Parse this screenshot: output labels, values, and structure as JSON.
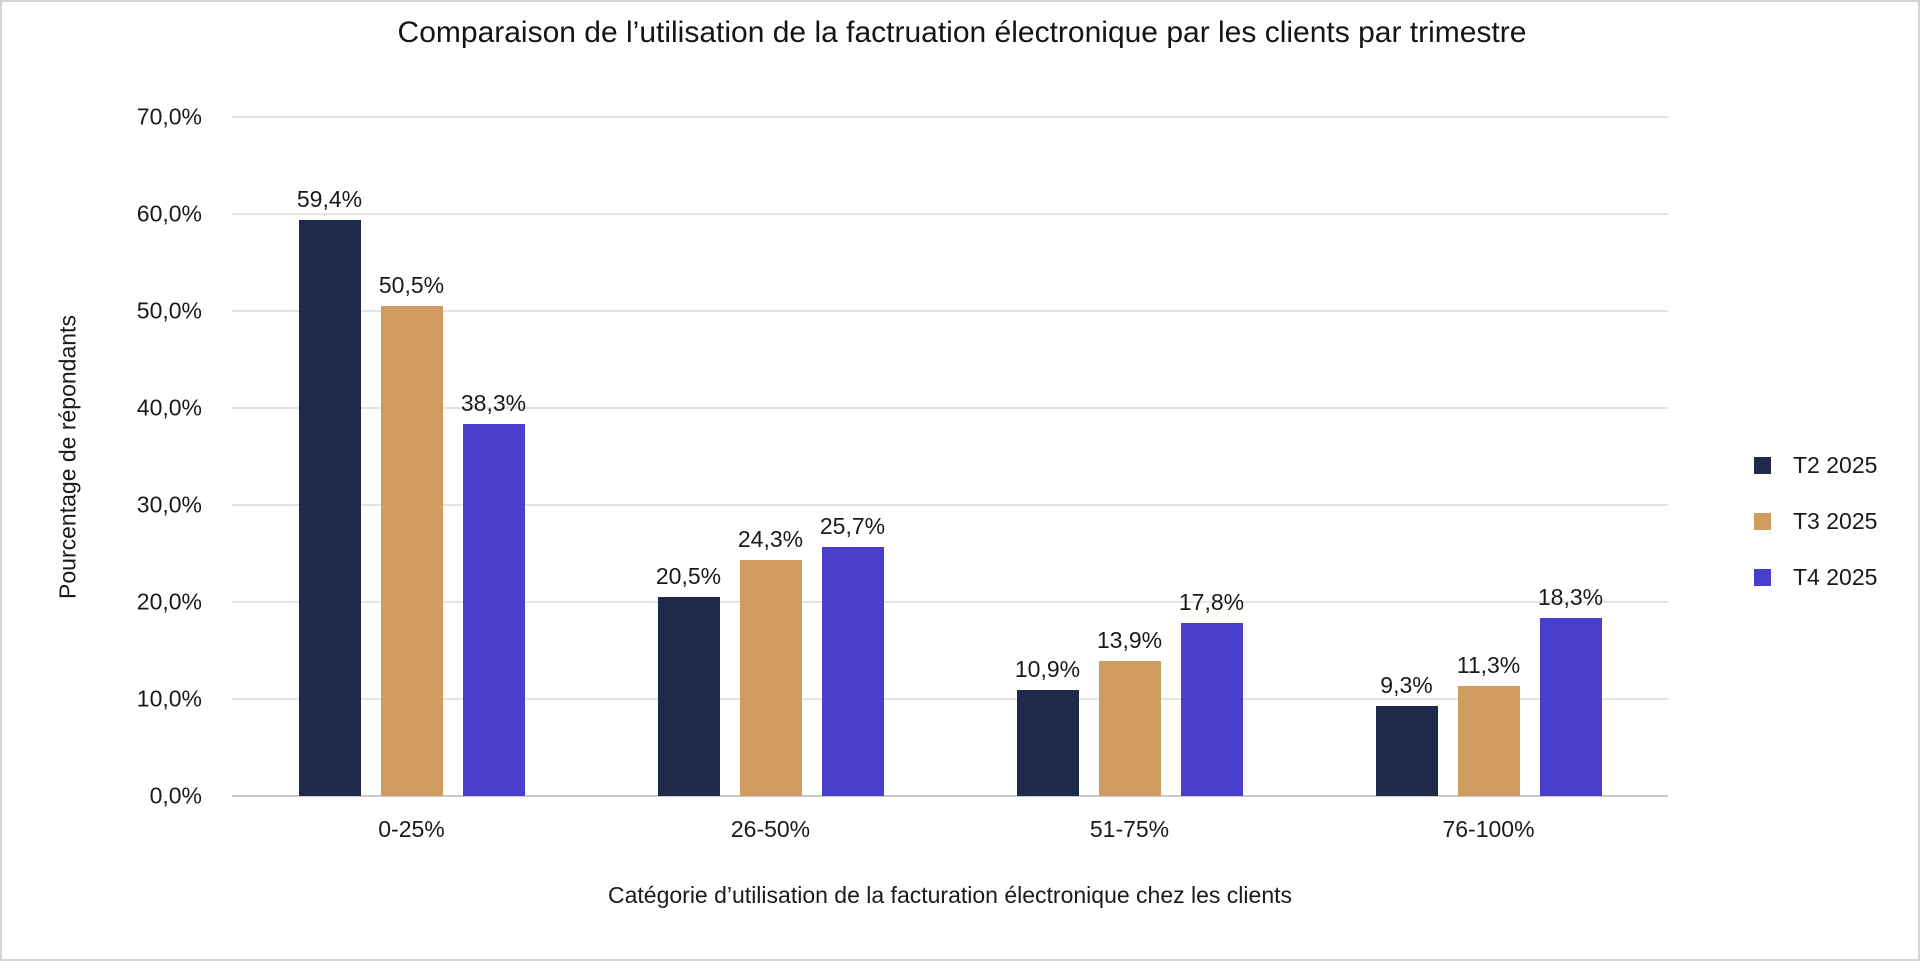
{
  "chart_data": {
    "type": "bar",
    "title": "Comparaison de l’utilisation de la factruation électronique par les clients par trimestre",
    "xlabel": "Catégorie d’utilisation de la facturation électronique chez les clients",
    "ylabel": "Pourcentage de répondants",
    "categories": [
      "0-25%",
      "26-50%",
      "51-75%",
      "76-100%"
    ],
    "series": [
      {
        "name": "T2 2025",
        "color": "#1f2a4a",
        "values": [
          59.4,
          20.5,
          10.9,
          9.3
        ],
        "labels": [
          "59,4%",
          "20,5%",
          "10,9%",
          "9,3%"
        ]
      },
      {
        "name": "T3 2025",
        "color": "#d19c5f",
        "values": [
          50.5,
          24.3,
          13.9,
          11.3
        ],
        "labels": [
          "50,5%",
          "24,3%",
          "13,9%",
          "11,3%"
        ]
      },
      {
        "name": "T4 2025",
        "color": "#4a3fcd",
        "values": [
          38.3,
          25.7,
          17.8,
          18.3
        ],
        "labels": [
          "38,3%",
          "25,7%",
          "17,8%",
          "18,3%"
        ]
      }
    ],
    "y_ticks": [
      "0,0%",
      "10,0%",
      "20,0%",
      "30,0%",
      "40,0%",
      "50,0%",
      "60,0%",
      "70,0%"
    ],
    "ylim": [
      0,
      70
    ],
    "grid": true,
    "legend_position": "right",
    "colors": {
      "background": "#ffffff",
      "gridline": "#e4e4e4",
      "axis_line": "#c9c9c9",
      "text": "#1a1a1a",
      "frame_border": "#d4d4d4"
    }
  }
}
